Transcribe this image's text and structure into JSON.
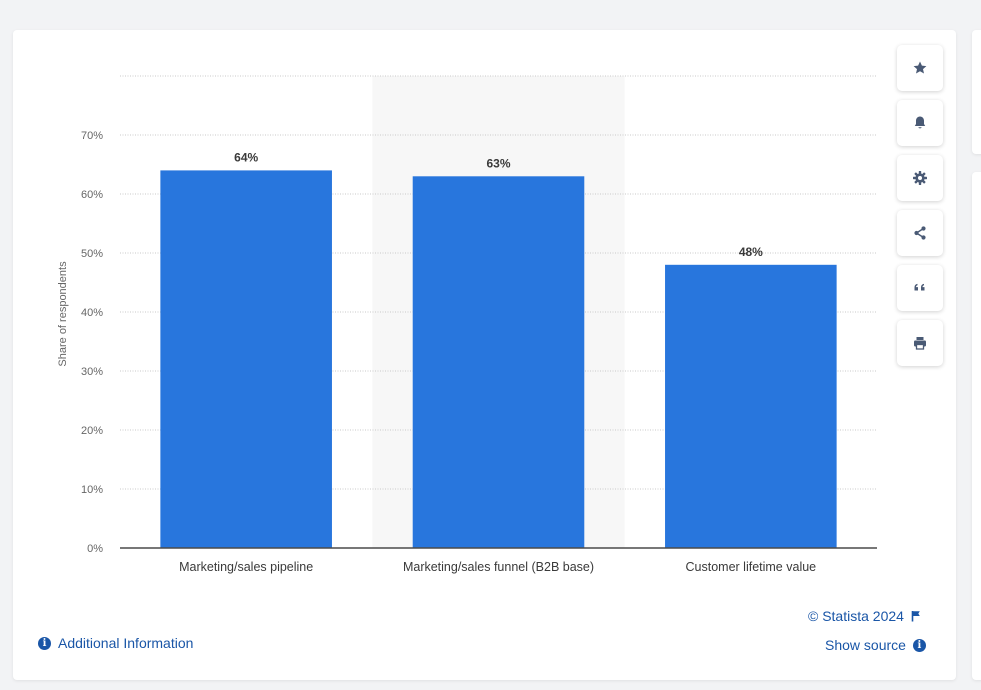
{
  "chart_data": {
    "type": "bar",
    "categories": [
      "Marketing/sales pipeline",
      "Marketing/sales funnel (B2B base)",
      "Customer lifetime value"
    ],
    "values": [
      64,
      63,
      48
    ],
    "data_labels": [
      "64%",
      "63%",
      "48%"
    ],
    "ylabel": "Share of respondents",
    "ylim": [
      0,
      80
    ],
    "y_ticks": [
      0,
      10,
      20,
      30,
      40,
      50,
      60,
      70
    ],
    "y_tick_labels": [
      "0%",
      "10%",
      "20%",
      "30%",
      "40%",
      "50%",
      "60%",
      "70%"
    ],
    "bar_color": "#2876dd",
    "highlighted_category_index": 1,
    "grid": true
  },
  "colors": {
    "bar": "#2876dd",
    "link": "#1a56a7",
    "icon": "#4a5a75",
    "highlight_band": "#f7f7f7"
  },
  "toolbar": {
    "icons": [
      "star-icon",
      "bell-icon",
      "gear-icon",
      "share-icon",
      "quote-icon",
      "print-icon"
    ]
  },
  "footer": {
    "copyright": "© Statista 2024",
    "show_source": "Show source",
    "additional_info": "Additional Information"
  }
}
